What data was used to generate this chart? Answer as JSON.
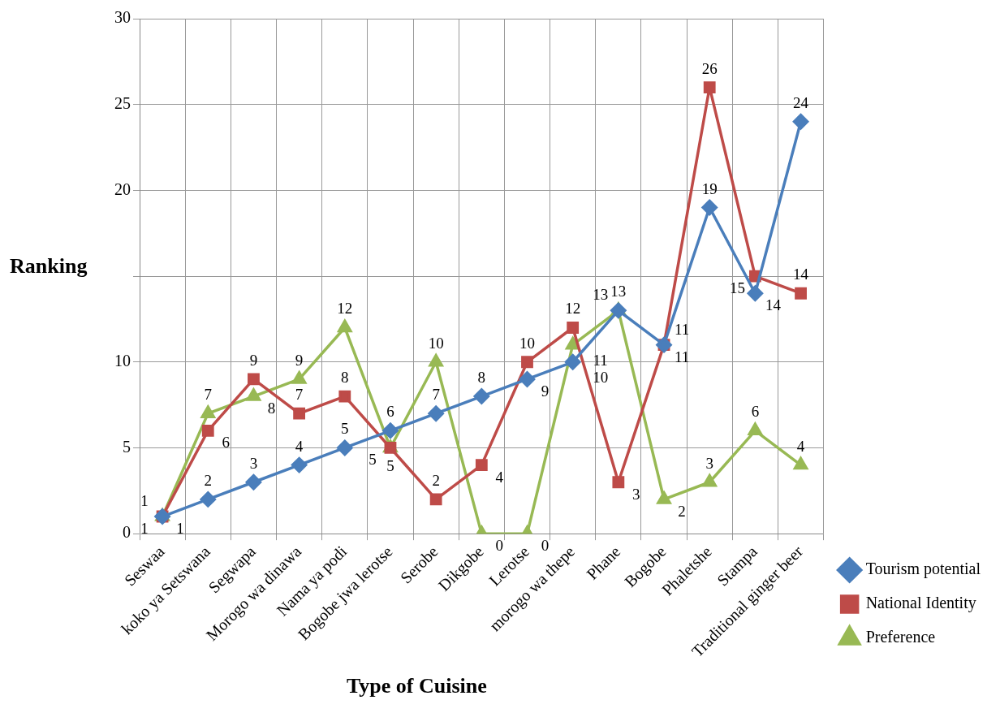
{
  "chart_data": {
    "type": "line",
    "xlabel": "Type of Cuisine",
    "ylabel": "Ranking",
    "categories": [
      "Seswaa",
      "koko ya Setswana",
      "Segwapa",
      "Morogo wa dinawa",
      "Nama ya podi",
      "Bogobe jwa lerotse",
      "Serobe",
      "Dikgobe",
      "Lerotse",
      "morogo wa thepe",
      "Phane",
      "Bogobe",
      "Phaletshe",
      "Stampa",
      "Traditional ginger beer"
    ],
    "series": [
      {
        "name": "Tourism potential",
        "color": "#4a7ebb",
        "marker": "diamond",
        "values": [
          1,
          2,
          3,
          4,
          5,
          6,
          7,
          8,
          9,
          10,
          13,
          11,
          19,
          14,
          24
        ]
      },
      {
        "name": "National Identity",
        "color": "#be4b48",
        "marker": "square",
        "values": [
          1,
          6,
          9,
          7,
          8,
          5,
          2,
          4,
          10,
          12,
          3,
          11,
          26,
          15,
          14
        ]
      },
      {
        "name": "Preference",
        "color": "#98b954",
        "marker": "triangle",
        "values": [
          1,
          7,
          8,
          9,
          12,
          5,
          10,
          0,
          0,
          11,
          13,
          2,
          3,
          6,
          4
        ]
      }
    ],
    "ylim": [
      0,
      30
    ],
    "yticks": [
      0,
      5,
      10,
      {
        "value": 15,
        "label": null
      },
      20,
      25,
      30
    ],
    "grid": true,
    "legend": "bottom right",
    "data_labels": true,
    "line_style": "solid"
  }
}
